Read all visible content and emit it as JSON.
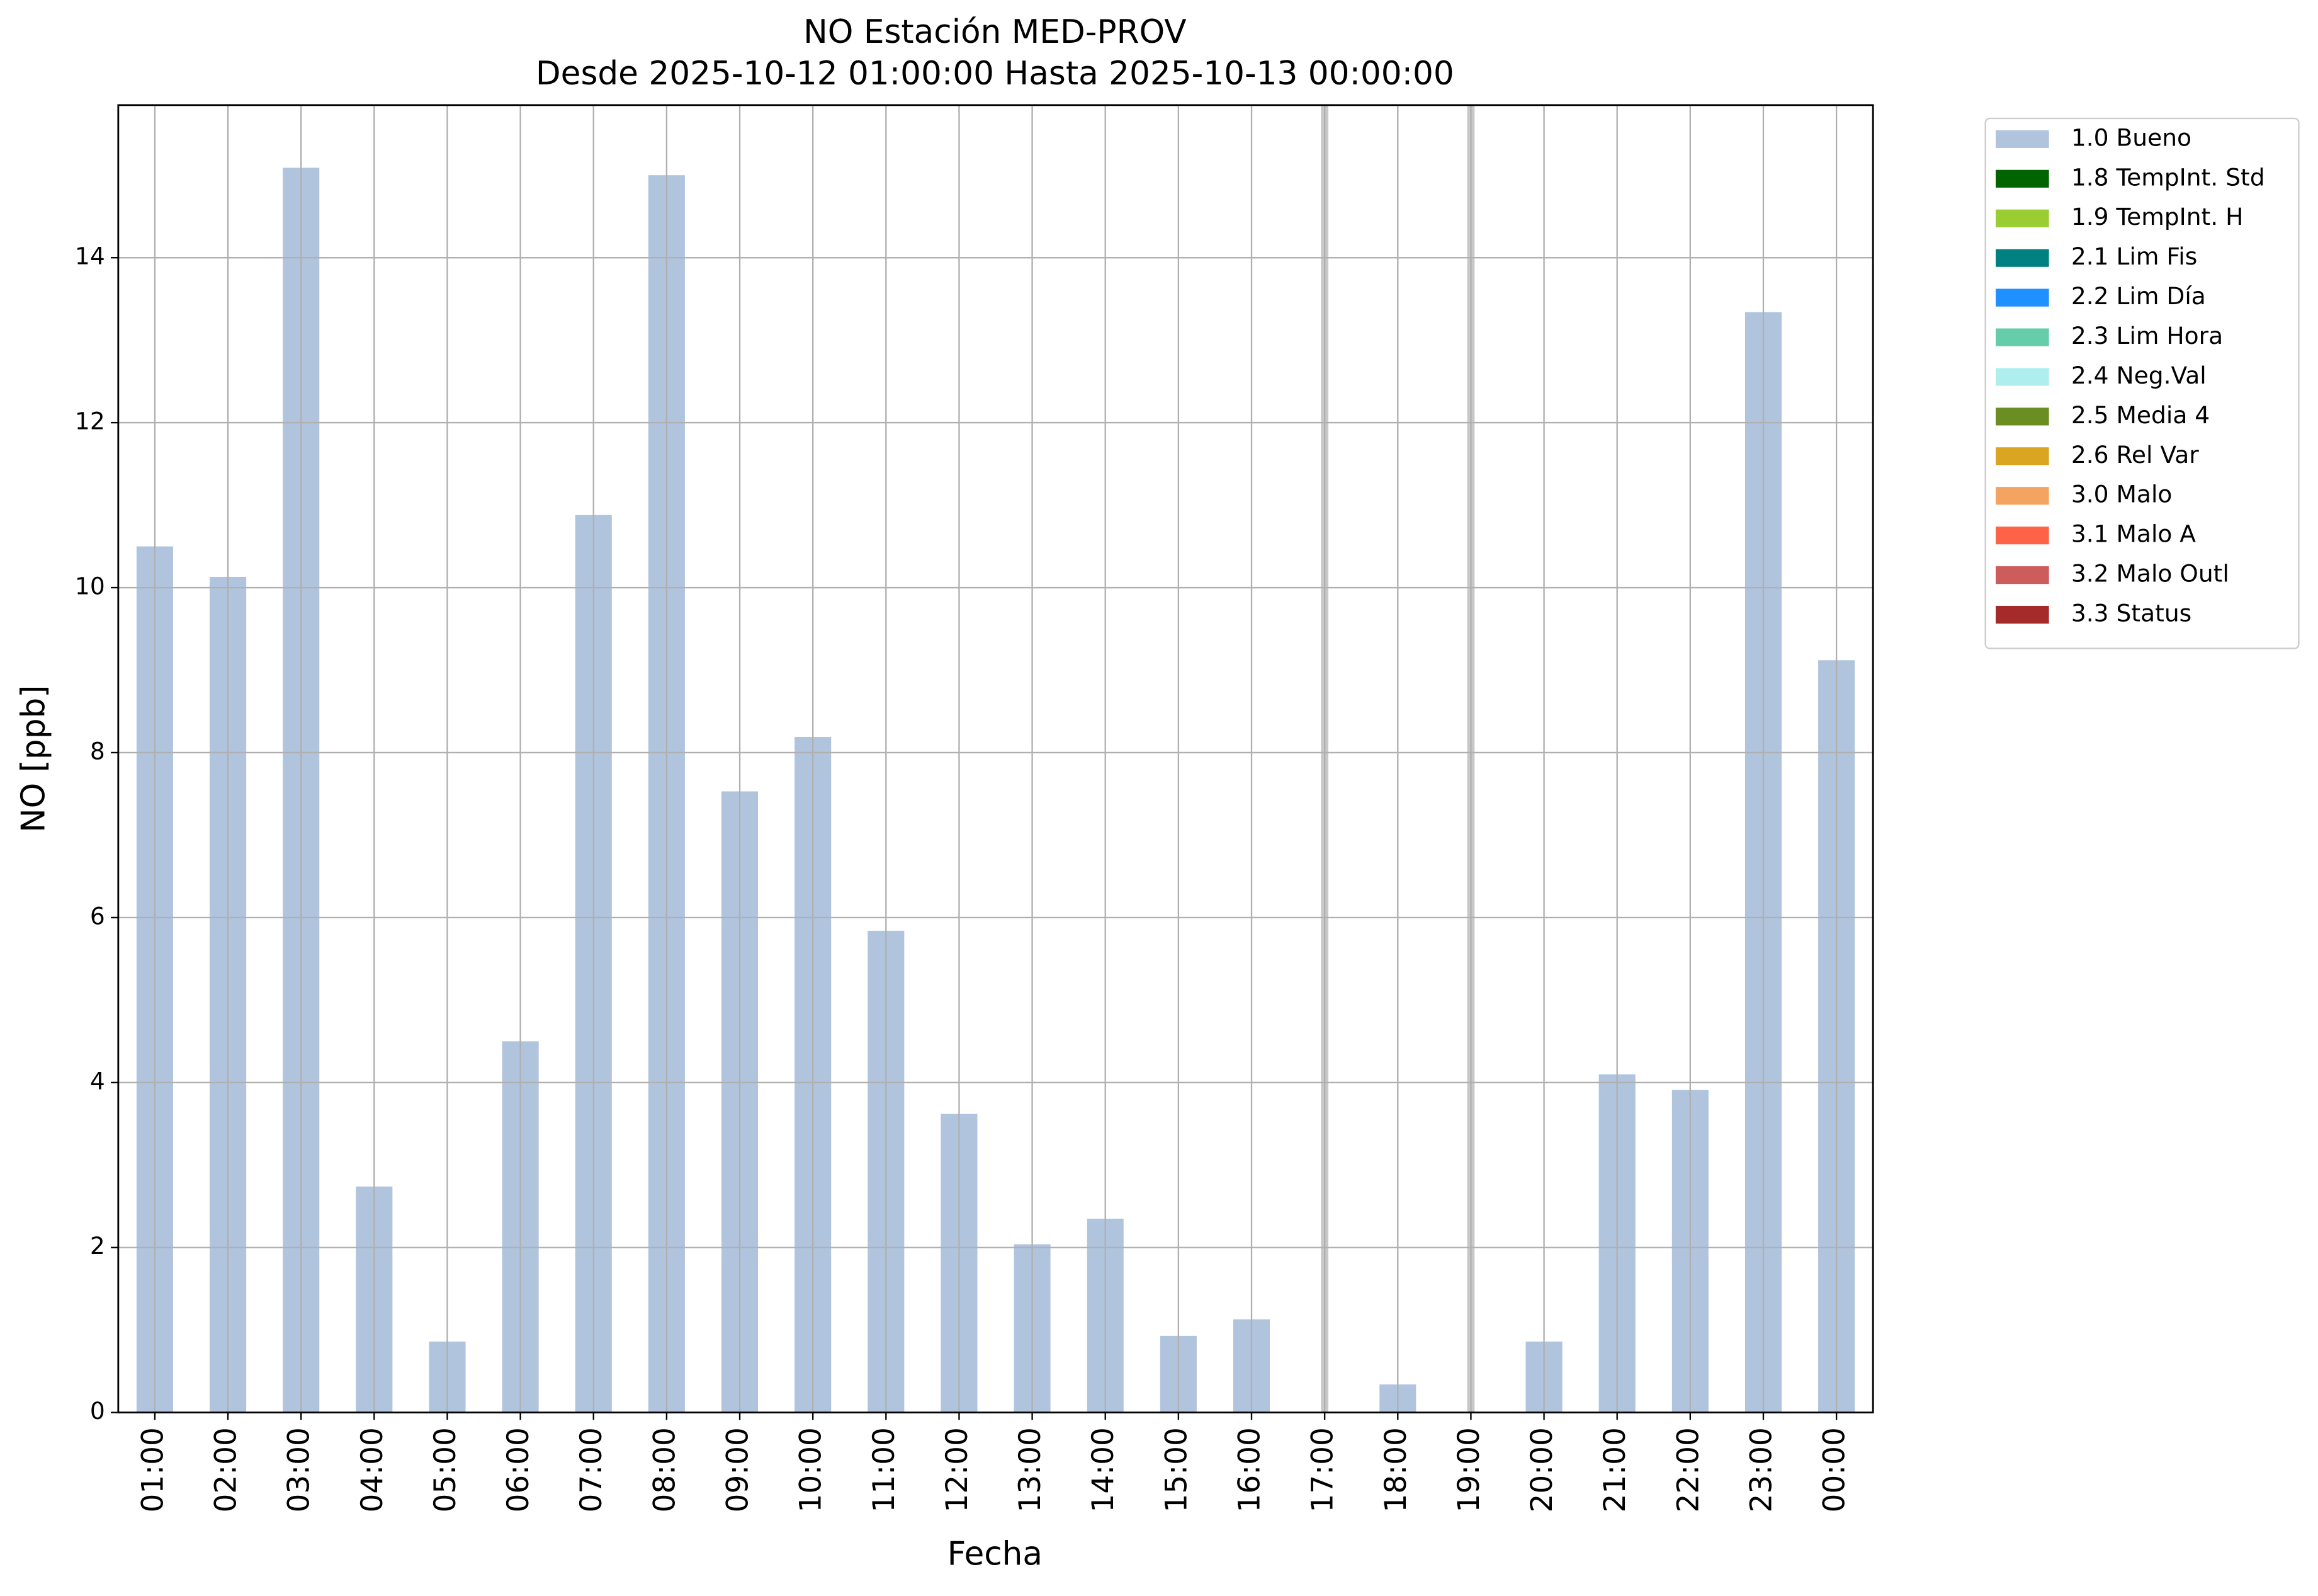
{
  "chart_data": {
    "type": "bar",
    "title": "NO Estación MED-PROV",
    "subtitle": "Desde 2025-10-12 01:00:00 Hasta 2025-10-13 00:00:00",
    "x_label": "Fecha",
    "y_label": "NO [ppb]",
    "categories": [
      "01:00",
      "02:00",
      "03:00",
      "04:00",
      "05:00",
      "06:00",
      "07:00",
      "08:00",
      "09:00",
      "10:00",
      "11:00",
      "12:00",
      "13:00",
      "14:00",
      "15:00",
      "16:00",
      "17:00",
      "18:00",
      "19:00",
      "20:00",
      "21:00",
      "22:00",
      "23:00",
      "00:00"
    ],
    "series": [
      {
        "name": "1.0 Bueno",
        "color": "#b0c4de",
        "values": [
          10.5,
          10.13,
          15.09,
          2.74,
          0.86,
          4.5,
          10.88,
          15.0,
          7.53,
          8.19,
          5.84,
          3.62,
          2.04,
          2.35,
          0.93,
          1.13,
          null,
          0.34,
          null,
          0.86,
          4.1,
          3.91,
          13.34,
          9.12
        ]
      }
    ],
    "other_flags": [
      {
        "name": "1.8 TempInt. Std",
        "color": "#006400"
      },
      {
        "name": "1.9 TempInt. H",
        "color": "#9acd32"
      },
      {
        "name": "2.1 Lim Fis",
        "color": "#008080"
      },
      {
        "name": "2.2 Lim Día",
        "color": "#1e90ff"
      },
      {
        "name": "2.3 Lim Hora",
        "color": "#66cdaa"
      },
      {
        "name": "2.4 Neg.Val",
        "color": "#afeeee"
      },
      {
        "name": "2.5 Media 4",
        "color": "#6b8e23"
      },
      {
        "name": "2.6 Rel Var",
        "color": "#daa520"
      },
      {
        "name": "3.0 Malo",
        "color": "#f4a460"
      },
      {
        "name": "3.1 Malo A",
        "color": "#ff6347"
      },
      {
        "name": "3.2 Malo Outl",
        "color": "#cd5c5c"
      },
      {
        "name": "3.3 Status",
        "color": "#a52a2a"
      }
    ],
    "ylim": [
      0,
      15.85
    ],
    "yticks": [
      0,
      2,
      4,
      6,
      8,
      10,
      12,
      14
    ],
    "grid": true,
    "legend": "outside upper right"
  }
}
